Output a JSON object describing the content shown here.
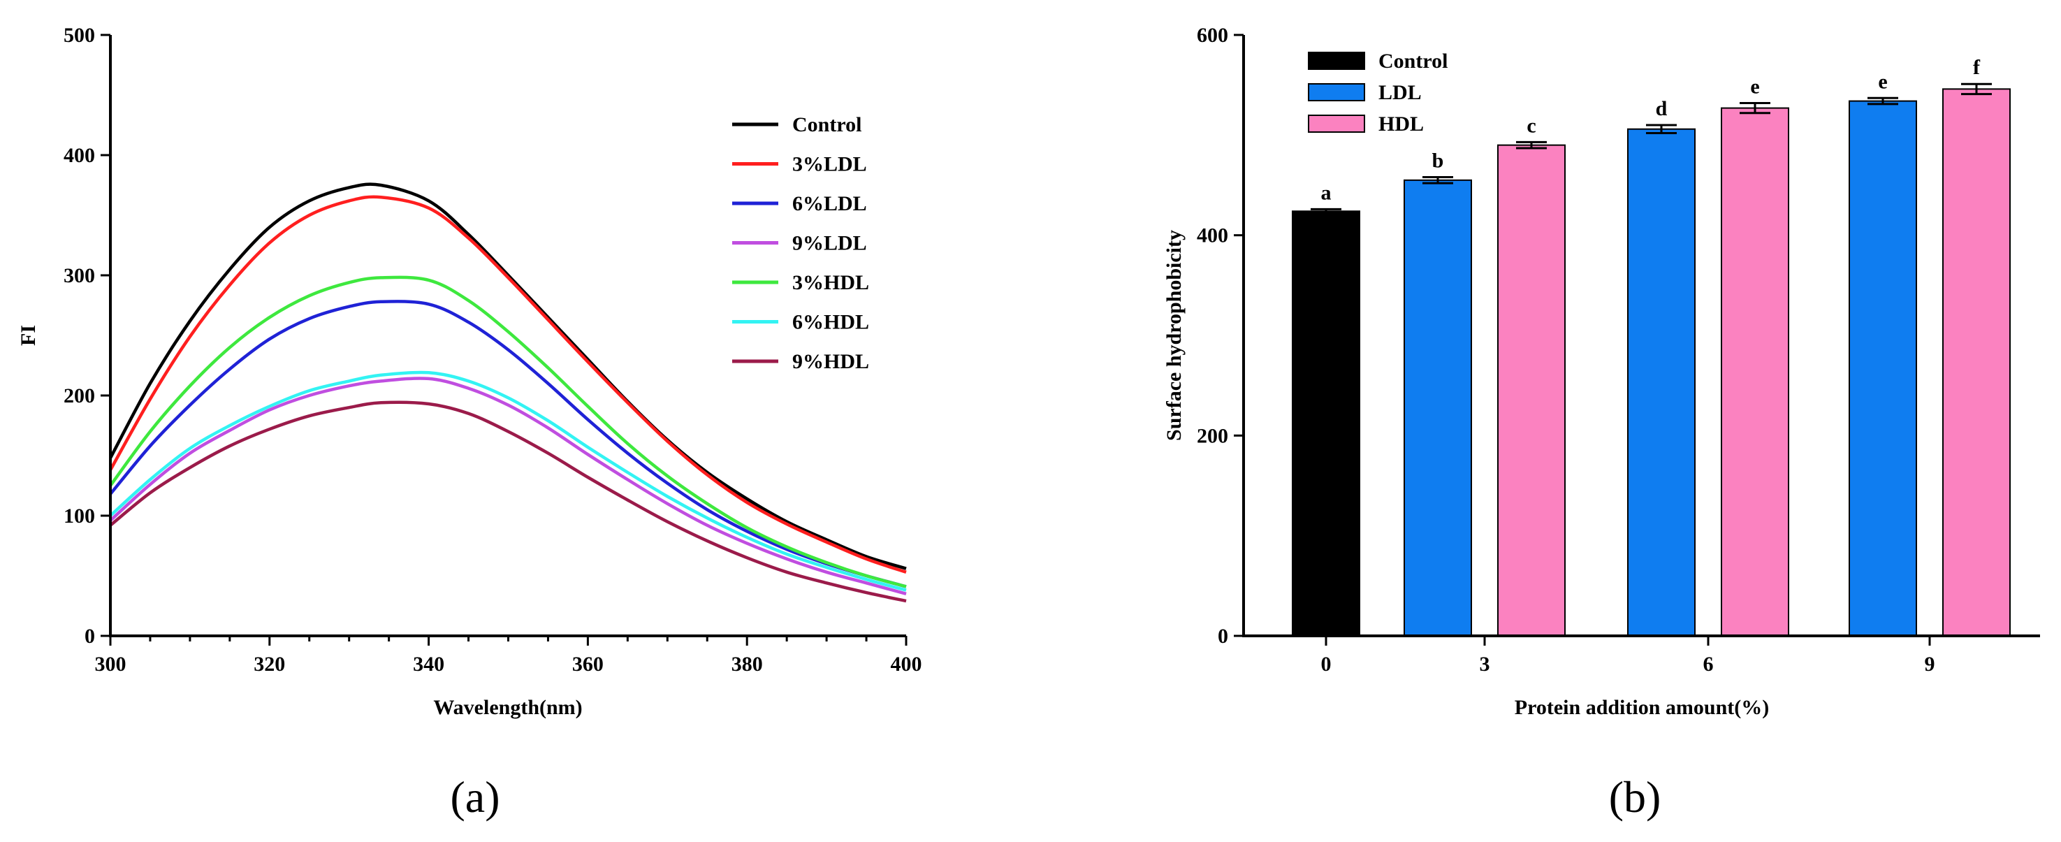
{
  "chart_data": [
    {
      "id": "panel-a",
      "type": "line",
      "panel_label": "(a)",
      "xlabel": "Wavelength(nm)",
      "ylabel": "FI",
      "xlim": [
        300,
        400
      ],
      "ylim": [
        0,
        500
      ],
      "xticks": [
        300,
        320,
        340,
        360,
        380,
        400
      ],
      "yticks": [
        0,
        100,
        200,
        300,
        400,
        500
      ],
      "x": [
        300,
        305,
        310,
        315,
        320,
        325,
        330,
        334,
        340,
        345,
        350,
        355,
        360,
        365,
        370,
        375,
        380,
        385,
        390,
        395,
        400
      ],
      "series": [
        {
          "name": "Control",
          "color": "#000000",
          "values": [
            148,
            210,
            262,
            305,
            340,
            362,
            373,
            375,
            362,
            334,
            300,
            265,
            230,
            195,
            163,
            136,
            114,
            95,
            80,
            66,
            56
          ]
        },
        {
          "name": "3%LDL",
          "color": "#ff1f1f",
          "values": [
            138,
            197,
            249,
            292,
            327,
            350,
            362,
            365,
            356,
            331,
            298,
            263,
            228,
            194,
            162,
            134,
            111,
            93,
            78,
            64,
            53
          ]
        },
        {
          "name": "6%LDL",
          "color": "#1f22d6",
          "values": [
            118,
            158,
            192,
            222,
            247,
            264,
            274,
            278,
            276,
            261,
            238,
            210,
            180,
            152,
            127,
            105,
            87,
            72,
            60,
            50,
            41
          ]
        },
        {
          "name": "9%LDL",
          "color": "#c04ee0",
          "values": [
            96,
            126,
            152,
            171,
            188,
            200,
            208,
            212,
            214,
            206,
            192,
            173,
            151,
            130,
            110,
            92,
            77,
            64,
            53,
            44,
            35
          ]
        },
        {
          "name": "3%HDL",
          "color": "#3ee83e",
          "values": [
            125,
            170,
            208,
            240,
            265,
            283,
            294,
            298,
            296,
            279,
            253,
            223,
            191,
            160,
            133,
            110,
            90,
            74,
            61,
            50,
            41
          ]
        },
        {
          "name": "6%HDL",
          "color": "#33f3f3",
          "values": [
            100,
            130,
            156,
            175,
            191,
            204,
            212,
            217,
            219,
            212,
            198,
            179,
            157,
            136,
            116,
            98,
            82,
            68,
            57,
            47,
            38
          ]
        },
        {
          "name": "9%HDL",
          "color": "#9b1b4a",
          "values": [
            92,
            119,
            140,
            158,
            172,
            183,
            190,
            194,
            193,
            185,
            170,
            152,
            132,
            113,
            95,
            79,
            65,
            53,
            44,
            36,
            29
          ]
        }
      ],
      "legend": "top-right"
    },
    {
      "id": "panel-b",
      "type": "bar",
      "panel_label": "(b)",
      "xlabel": "Protein addition amount(%)",
      "ylabel": "Surface hydrophobicity",
      "ylim": [
        0,
        600
      ],
      "yticks": [
        0,
        200,
        400,
        600
      ],
      "categories": [
        "0",
        "3",
        "6",
        "9"
      ],
      "series": [
        {
          "name": "Control",
          "color": "#000000",
          "values": [
            424,
            null,
            null,
            null
          ],
          "errors": [
            2,
            null,
            null,
            null
          ],
          "letters": [
            "a",
            "",
            "",
            ""
          ]
        },
        {
          "name": "LDL",
          "color": "#0f7df0",
          "values": [
            null,
            455,
            506,
            534
          ],
          "errors": [
            null,
            3,
            4,
            3
          ],
          "letters": [
            "",
            "b",
            "d",
            "e"
          ]
        },
        {
          "name": "HDL",
          "color": "#fb82c0",
          "values": [
            null,
            490,
            527,
            546
          ],
          "errors": [
            null,
            3,
            5,
            5
          ],
          "letters": [
            "",
            "c",
            "e",
            "f"
          ]
        }
      ],
      "legend": "top-left"
    }
  ]
}
